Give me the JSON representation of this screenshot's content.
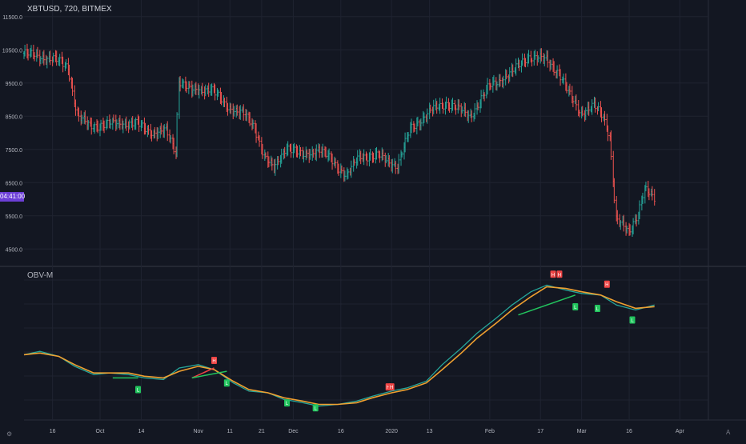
{
  "header": {
    "title": "XBTUSD, 720, BITMEX"
  },
  "indicator": {
    "title": "OBV-M"
  },
  "price_tag": "04:41:00",
  "gear_icon": "settings-icon",
  "auto_label": "A",
  "colors": {
    "background": "#131722",
    "grid": "#1f2330",
    "up": "#26a69a",
    "down": "#ef5350",
    "obv_line": "#26a69a",
    "ma_line": "#f0a030",
    "bull_marker": "#22c55e",
    "bear_marker": "#ef4444",
    "price_tag": "#6c3fd6"
  },
  "chart_data": [
    {
      "type": "ohlc",
      "symbol": "XBTUSD",
      "interval": "720",
      "exchange": "BITMEX",
      "ylim": [
        4000,
        12000
      ],
      "y_ticks": [
        "4500.0",
        "5500.0",
        "6500.0",
        "7500.0",
        "8500.0",
        "9500.0",
        "10500.0",
        "11500.0"
      ],
      "x_ticks": [
        "16",
        "Oct",
        "14",
        "Nov",
        "11",
        "21",
        "Dec",
        "16",
        "2020",
        "13",
        "Feb",
        "17",
        "Mar",
        "16",
        "Apr"
      ],
      "x_range": [
        "2019-09-07",
        "2020-04-10"
      ],
      "close_path": [
        [
          "2019-09-07",
          10400
        ],
        [
          "2019-09-12",
          10300
        ],
        [
          "2019-09-17",
          10200
        ],
        [
          "2019-09-21",
          10000
        ],
        [
          "2019-09-24",
          8500
        ],
        [
          "2019-09-28",
          8200
        ],
        [
          "2019-10-03",
          8250
        ],
        [
          "2019-10-08",
          8300
        ],
        [
          "2019-10-13",
          8250
        ],
        [
          "2019-10-18",
          8000
        ],
        [
          "2019-10-22",
          8050
        ],
        [
          "2019-10-25",
          7450
        ],
        [
          "2019-10-26",
          9600
        ],
        [
          "2019-10-30",
          9250
        ],
        [
          "2019-11-05",
          9350
        ],
        [
          "2019-11-10",
          8800
        ],
        [
          "2019-11-15",
          8600
        ],
        [
          "2019-11-19",
          8150
        ],
        [
          "2019-11-22",
          7300
        ],
        [
          "2019-11-25",
          6900
        ],
        [
          "2019-11-29",
          7600
        ],
        [
          "2019-12-04",
          7300
        ],
        [
          "2019-12-09",
          7500
        ],
        [
          "2019-12-13",
          7200
        ],
        [
          "2019-12-18",
          6700
        ],
        [
          "2019-12-22",
          7300
        ],
        [
          "2019-12-28",
          7300
        ],
        [
          "2020-01-03",
          7000
        ],
        [
          "2020-01-07",
          8100
        ],
        [
          "2020-01-14",
          8700
        ],
        [
          "2020-01-19",
          8900
        ],
        [
          "2020-01-26",
          8500
        ],
        [
          "2020-02-01",
          9400
        ],
        [
          "2020-02-08",
          9800
        ],
        [
          "2020-02-13",
          10300
        ],
        [
          "2020-02-19",
          10200
        ],
        [
          "2020-02-23",
          9800
        ],
        [
          "2020-02-26",
          9200
        ],
        [
          "2020-03-01",
          8600
        ],
        [
          "2020-03-05",
          8800
        ],
        [
          "2020-03-08",
          8500
        ],
        [
          "2020-03-10",
          7900
        ],
        [
          "2020-03-12",
          5400
        ],
        [
          "2020-03-16",
          5000
        ],
        [
          "2020-03-19",
          5600
        ],
        [
          "2020-03-21",
          6300
        ],
        [
          "2020-03-24",
          6000
        ]
      ]
    },
    {
      "type": "line",
      "title": "OBV-M",
      "series": [
        {
          "values": [
            0.72,
            0.74,
            0.71,
            0.65,
            0.6,
            0.61,
            0.6,
            0.58,
            0.57,
            0.64,
            0.66,
            0.63,
            0.55,
            0.5,
            0.49,
            0.45,
            0.43,
            0.41,
            0.42,
            0.44,
            0.47,
            0.5,
            0.52,
            0.56,
            0.66,
            0.76,
            0.85,
            0.94,
            1.02,
            1.1,
            1.14,
            1.11,
            1.09,
            1.08,
            1.02,
            0.99,
            1.02
          ]
        },
        {
          "values": [
            0.72,
            0.73,
            0.71,
            0.66,
            0.61,
            0.61,
            0.61,
            0.59,
            0.58,
            0.62,
            0.65,
            0.63,
            0.56,
            0.51,
            0.49,
            0.46,
            0.44,
            0.42,
            0.42,
            0.43,
            0.46,
            0.49,
            0.51,
            0.55,
            0.63,
            0.73,
            0.82,
            0.91,
            0.99,
            1.07,
            1.13,
            1.12,
            1.1,
            1.08,
            1.04,
            1.0,
            1.01
          ]
        }
      ],
      "x_range": [
        "2019-09-07",
        "2020-03-24"
      ],
      "ylim": [
        0.35,
        1.2
      ],
      "markers": [
        {
          "type": "bear",
          "label": "H",
          "date": "2019-11-06",
          "value": 0.64
        },
        {
          "type": "bull",
          "label": "L",
          "date": "2019-11-10",
          "value": 0.6
        },
        {
          "type": "bull",
          "label": "L",
          "date": "2019-10-13",
          "value": 0.56
        },
        {
          "type": "bull",
          "label": "L",
          "date": "2019-11-29",
          "value": 0.48
        },
        {
          "type": "bull",
          "label": "L",
          "date": "2019-12-08",
          "value": 0.45
        },
        {
          "type": "bear",
          "label": "H",
          "date": "2019-12-31",
          "value": 0.48
        },
        {
          "type": "bear",
          "label": "H",
          "date": "2020-01-01",
          "value": 0.48
        },
        {
          "type": "bear",
          "label": "H",
          "date": "2020-02-21",
          "value": 1.16
        },
        {
          "type": "bear",
          "label": "H",
          "date": "2020-02-23",
          "value": 1.16
        },
        {
          "type": "bull",
          "label": "L",
          "date": "2020-02-28",
          "value": 1.06
        },
        {
          "type": "bull",
          "label": "L",
          "date": "2020-03-06",
          "value": 1.05
        },
        {
          "type": "bear",
          "label": "H",
          "date": "2020-03-09",
          "value": 1.1
        },
        {
          "type": "bull",
          "label": "L",
          "date": "2020-03-17",
          "value": 0.98
        }
      ],
      "divergence_lines": [
        {
          "type": "bear",
          "from": [
            "2019-10-30",
            0.58
          ],
          "to": [
            "2019-11-06",
            0.64
          ]
        },
        {
          "type": "bull",
          "from": [
            "2019-10-30",
            0.58
          ],
          "to": [
            "2019-11-10",
            0.62
          ]
        },
        {
          "type": "bull",
          "from": [
            "2019-10-05",
            0.58
          ],
          "to": [
            "2019-10-13",
            0.58
          ]
        },
        {
          "type": "bull",
          "from": [
            "2020-02-10",
            0.96
          ],
          "to": [
            "2020-02-28",
            1.08
          ]
        }
      ]
    }
  ]
}
